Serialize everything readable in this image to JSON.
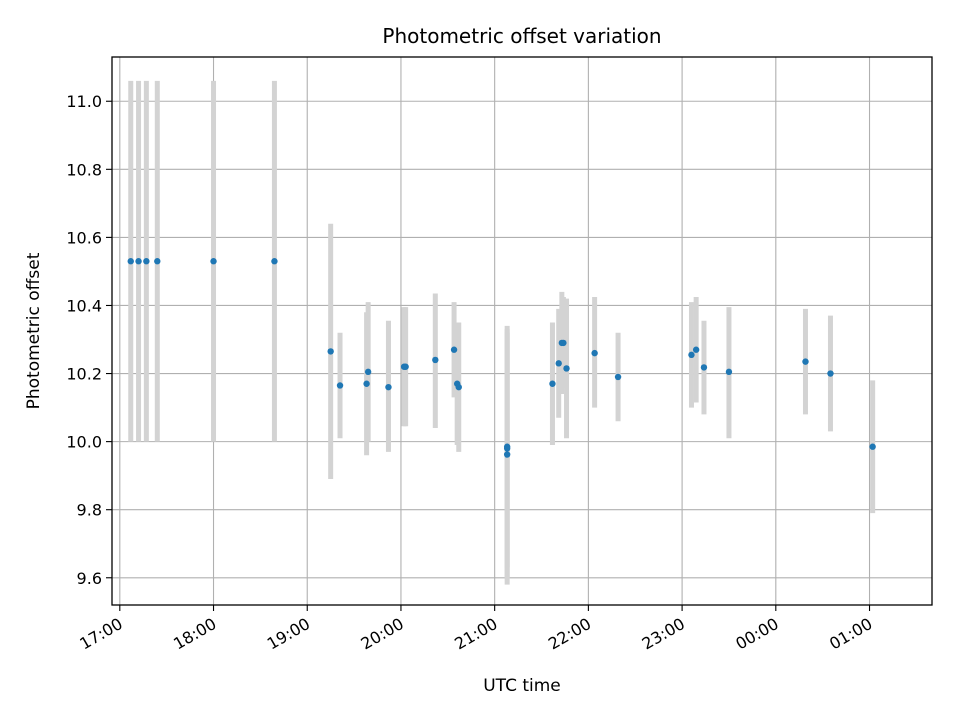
{
  "chart_data": {
    "type": "scatter",
    "title": "Photometric offset variation",
    "xlabel": "UTC time",
    "ylabel": "Photometric offset",
    "x_unit": "UTC time",
    "xlim": [
      "16:55",
      "01:40"
    ],
    "ylim": [
      9.52,
      11.13
    ],
    "x_ticks": [
      "17:00",
      "18:00",
      "19:00",
      "20:00",
      "21:00",
      "22:00",
      "23:00",
      "00:00",
      "01:00"
    ],
    "y_ticks": [
      "9.6",
      "9.8",
      "10.0",
      "10.2",
      "10.4",
      "10.6",
      "10.8",
      "11.0"
    ],
    "grid": true,
    "marker_color": "#1f77b4",
    "errorbar_color": "#d3d3d3",
    "points": [
      {
        "t": "17:07",
        "y": 10.53,
        "lo": 10.0,
        "hi": 11.06
      },
      {
        "t": "17:12",
        "y": 10.53,
        "lo": 10.0,
        "hi": 11.06
      },
      {
        "t": "17:17",
        "y": 10.53,
        "lo": 10.0,
        "hi": 11.06
      },
      {
        "t": "17:24",
        "y": 10.53,
        "lo": 10.0,
        "hi": 11.06
      },
      {
        "t": "18:00",
        "y": 10.53,
        "lo": 10.0,
        "hi": 11.06
      },
      {
        "t": "18:39",
        "y": 10.53,
        "lo": 10.0,
        "hi": 11.06
      },
      {
        "t": "19:15",
        "y": 10.265,
        "lo": 9.89,
        "hi": 10.64
      },
      {
        "t": "19:21",
        "y": 10.165,
        "lo": 10.01,
        "hi": 10.32
      },
      {
        "t": "19:38",
        "y": 10.17,
        "lo": 9.96,
        "hi": 10.38
      },
      {
        "t": "19:39",
        "y": 10.205,
        "lo": 10.0,
        "hi": 10.41
      },
      {
        "t": "19:52",
        "y": 10.16,
        "lo": 9.97,
        "hi": 10.355
      },
      {
        "t": "20:02",
        "y": 10.22,
        "lo": 10.045,
        "hi": 10.395
      },
      {
        "t": "20:03",
        "y": 10.22,
        "lo": 10.045,
        "hi": 10.395
      },
      {
        "t": "20:22",
        "y": 10.24,
        "lo": 10.04,
        "hi": 10.435
      },
      {
        "t": "20:34",
        "y": 10.27,
        "lo": 10.13,
        "hi": 10.41
      },
      {
        "t": "20:36",
        "y": 10.17,
        "lo": 9.99,
        "hi": 10.35
      },
      {
        "t": "20:37",
        "y": 10.16,
        "lo": 9.97,
        "hi": 10.35
      },
      {
        "t": "21:08",
        "y": 9.98,
        "lo": 9.58,
        "hi": 10.34
      },
      {
        "t": "21:08",
        "y": 9.985,
        "lo": 9.63,
        "hi": 10.33
      },
      {
        "t": "21:08",
        "y": 9.962,
        "lo": 9.6,
        "hi": 10.32
      },
      {
        "t": "21:37",
        "y": 10.17,
        "lo": 9.99,
        "hi": 10.35
      },
      {
        "t": "21:41",
        "y": 10.23,
        "lo": 10.07,
        "hi": 10.39
      },
      {
        "t": "21:43",
        "y": 10.29,
        "lo": 10.14,
        "hi": 10.44
      },
      {
        "t": "21:44",
        "y": 10.29,
        "lo": 10.16,
        "hi": 10.425
      },
      {
        "t": "21:46",
        "y": 10.215,
        "lo": 10.01,
        "hi": 10.42
      },
      {
        "t": "22:04",
        "y": 10.26,
        "lo": 10.1,
        "hi": 10.425
      },
      {
        "t": "22:19",
        "y": 10.19,
        "lo": 10.06,
        "hi": 10.32
      },
      {
        "t": "23:06",
        "y": 10.255,
        "lo": 10.1,
        "hi": 10.41
      },
      {
        "t": "23:09",
        "y": 10.27,
        "lo": 10.115,
        "hi": 10.425
      },
      {
        "t": "23:14",
        "y": 10.218,
        "lo": 10.08,
        "hi": 10.355
      },
      {
        "t": "23:30",
        "y": 10.205,
        "lo": 10.01,
        "hi": 10.395
      },
      {
        "t": "00:19",
        "y": 10.235,
        "lo": 10.08,
        "hi": 10.39
      },
      {
        "t": "00:35",
        "y": 10.2,
        "lo": 10.03,
        "hi": 10.37
      },
      {
        "t": "01:02",
        "y": 9.985,
        "lo": 9.79,
        "hi": 10.18
      }
    ]
  }
}
